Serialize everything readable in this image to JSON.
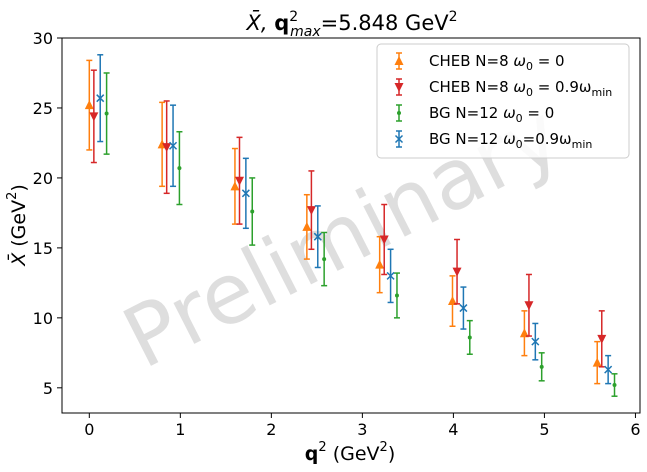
{
  "chart_data": {
    "type": "scatter",
    "title_main": "X̄,",
    "title_q": "q",
    "title_sup": "2",
    "title_sub": "max",
    "title_value": "=5.848 GeV",
    "title_value_sup": "2",
    "xlabel_q": "q",
    "xlabel_sup": "2",
    "xlabel_unit": "(GeV",
    "xlabel_unit_sup": "2",
    "xlabel_close": ")",
    "ylabel_sym": "X̄",
    "ylabel_unit": "(GeV",
    "ylabel_unit_sup": "2",
    "ylabel_close": ")",
    "xlim": [
      -0.3,
      6.05
    ],
    "ylim": [
      3.2,
      30.0
    ],
    "xticks": [
      "0",
      "1",
      "2",
      "3",
      "4",
      "5",
      "6"
    ],
    "yticks": [
      "5",
      "10",
      "15",
      "20",
      "25",
      "30"
    ],
    "watermark": "Preliminary",
    "legend_position": "top-right",
    "series": [
      {
        "label_a": "CHEB N=8 ",
        "label_b": "ω",
        "label_b_sub": "0",
        "label_c": " = 0",
        "color": "#ff7f0e",
        "marker": "triangle-up",
        "x": [
          0.0,
          0.8,
          1.6,
          2.39,
          3.19,
          3.99,
          4.78,
          5.58
        ],
        "y": [
          25.2,
          22.4,
          19.4,
          16.5,
          13.8,
          11.2,
          8.9,
          6.8
        ],
        "err": [
          3.2,
          3.0,
          2.7,
          2.3,
          2.0,
          1.8,
          1.6,
          1.5
        ]
      },
      {
        "label_a": "CHEB N=8 ",
        "label_b": "ω",
        "label_b_sub": "0",
        "label_c": " = 0.9ω",
        "label_c_sub": "min",
        "color": "#d62728",
        "marker": "triangle-down",
        "x": [
          0.05,
          0.85,
          1.65,
          2.44,
          3.24,
          4.04,
          4.83,
          5.63
        ],
        "y": [
          24.4,
          22.2,
          19.8,
          17.7,
          15.6,
          13.3,
          10.9,
          8.5
        ],
        "err": [
          3.3,
          3.3,
          3.1,
          2.8,
          2.5,
          2.3,
          2.2,
          2.0
        ]
      },
      {
        "label_a": "BG     N=12 ",
        "label_b": "ω",
        "label_b_sub": "0",
        "label_c": " = 0",
        "color": "#2ca02c",
        "marker": "point",
        "x": [
          0.19,
          0.99,
          1.79,
          2.58,
          3.38,
          4.18,
          4.97,
          5.77
        ],
        "y": [
          24.6,
          20.7,
          17.6,
          14.2,
          11.6,
          8.6,
          6.5,
          5.2
        ],
        "err": [
          2.9,
          2.6,
          2.4,
          1.9,
          1.6,
          1.2,
          1.0,
          0.8
        ]
      },
      {
        "label_a": "BG     N=12 ",
        "label_b": "ω",
        "label_b_sub": "0",
        "label_c": "=0.9ω",
        "label_c_sub": "min",
        "color": "#1f77b4",
        "marker": "x",
        "x": [
          0.12,
          0.92,
          1.72,
          2.51,
          3.31,
          4.11,
          4.9,
          5.7
        ],
        "y": [
          25.7,
          22.3,
          18.9,
          15.8,
          13.0,
          10.7,
          8.3,
          6.3
        ],
        "err": [
          3.1,
          2.9,
          2.5,
          2.2,
          1.9,
          1.5,
          1.3,
          1.0
        ]
      }
    ]
  }
}
